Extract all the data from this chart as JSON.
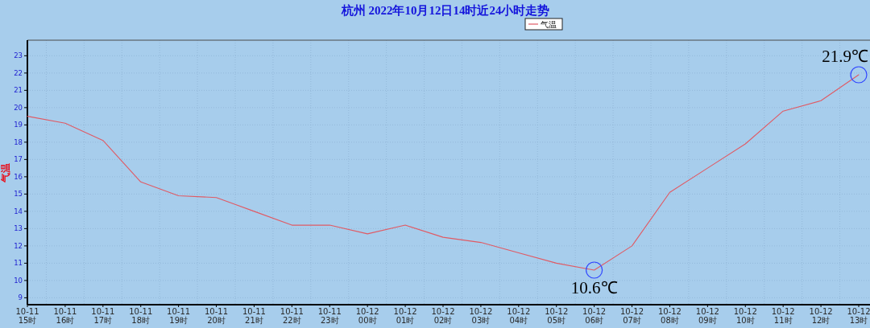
{
  "chart_data": {
    "type": "line",
    "title": "杭州 2022年10月12日14时近24小时走势",
    "ylabel": "气温",
    "categories": [
      "10-11\n15时",
      "10-11\n16时",
      "10-11\n17时",
      "10-11\n18时",
      "10-11\n19时",
      "10-11\n20时",
      "10-11\n21时",
      "10-11\n22时",
      "10-11\n23时",
      "10-12\n00时",
      "10-12\n01时",
      "10-12\n02时",
      "10-12\n03时",
      "10-12\n04时",
      "10-12\n05时",
      "10-12\n06时",
      "10-12\n07时",
      "10-12\n08时",
      "10-12\n09时",
      "10-12\n10时",
      "10-12\n11时",
      "10-12\n12时",
      "10-12\n13时"
    ],
    "series": [
      {
        "name": "气温",
        "color": "#e05a64",
        "values": [
          19.5,
          19.1,
          18.1,
          15.7,
          14.9,
          14.8,
          14.0,
          13.2,
          13.2,
          12.7,
          13.2,
          12.5,
          12.2,
          11.6,
          11.0,
          10.6,
          12.0,
          15.1,
          16.5,
          17.9,
          19.8,
          20.4,
          21.9
        ]
      }
    ],
    "ylim": [
      8.6,
      23.9
    ],
    "yticks": [
      9,
      10,
      11,
      12,
      13,
      14,
      15,
      16,
      17,
      18,
      19,
      20,
      21,
      22,
      23
    ],
    "grid": true,
    "legend": "top",
    "annotations": [
      {
        "text": "10.6℃",
        "x": "10-12\n06时",
        "y": 10.6
      },
      {
        "text": "21.9℃",
        "x": "10-12\n13时",
        "y": 21.9
      }
    ]
  }
}
